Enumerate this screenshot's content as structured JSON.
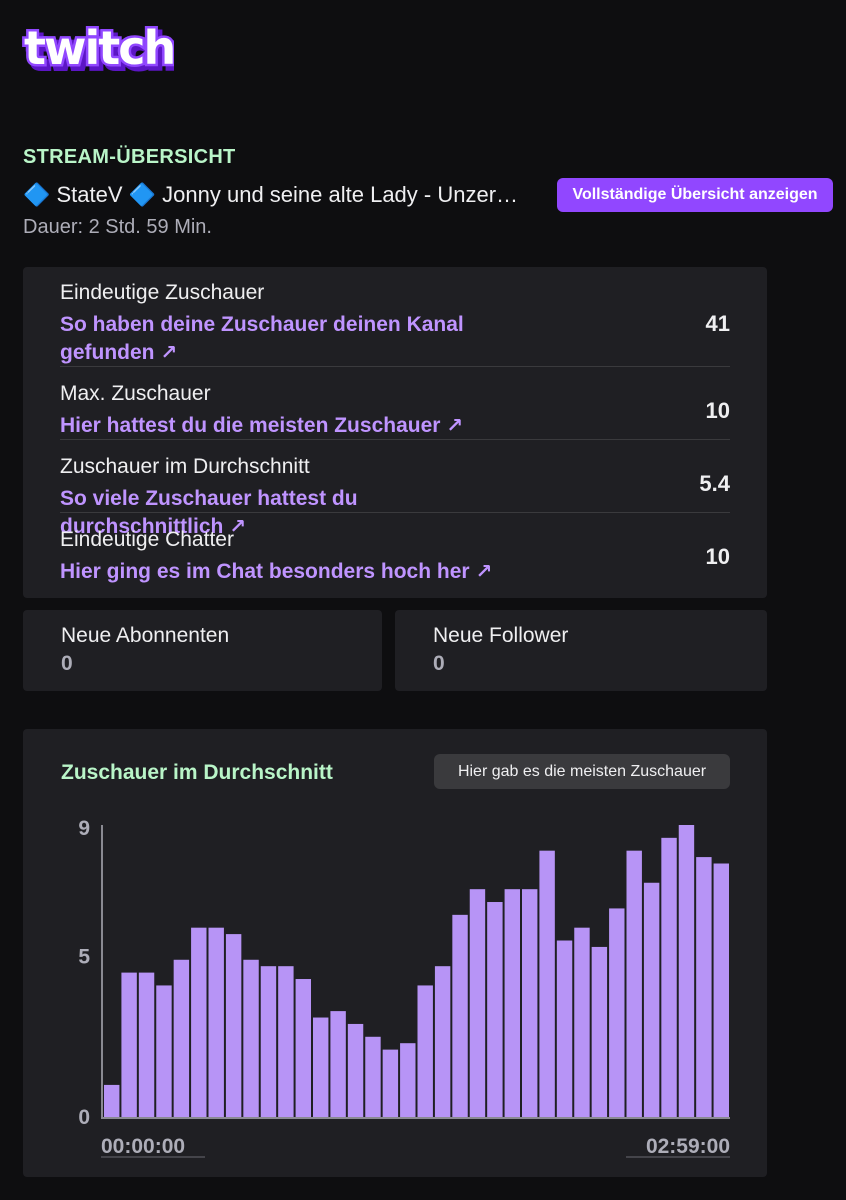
{
  "brand": {
    "logo_text": "twitch",
    "color": "#9147ff"
  },
  "overview": {
    "section_label": "STREAM-ÜBERSICHT",
    "title": "🔷 StateV 🔷 Jonny und seine alte Lady - Unzer…",
    "full_overview_button": "Vollständige Übersicht anzeigen",
    "duration": "Dauer: 2 Std. 59 Min."
  },
  "stats": [
    {
      "name": "Eindeutige Zuschauer",
      "link": "So haben deine Zuschauer deinen Kanal gefunden",
      "value": "41"
    },
    {
      "name": "Max. Zuschauer",
      "link": "Hier hattest du die meisten Zuschauer",
      "value": "10"
    },
    {
      "name": "Zuschauer im Durchschnitt",
      "link": "So viele Zuschauer hattest du durchschnittlich",
      "value": "5.4"
    },
    {
      "name": "Eindeutige Chatter",
      "link": "Hier ging es im Chat besonders hoch her",
      "value": "10"
    }
  ],
  "link_arrow": "↗",
  "subscribers": {
    "label": "Neue Abonnenten",
    "value": "0"
  },
  "followers": {
    "label": "Neue Follower",
    "value": "0"
  },
  "chart_section": {
    "title": "Zuschauer im Durchschnitt",
    "peak_button": "Hier gab es die meisten Zuschauer"
  },
  "chart_data": {
    "type": "bar",
    "title": "Zuschauer im Durchschnitt",
    "bar_color": "#b794f6",
    "x_tick_labels": [
      "00:00:00",
      "02:59:00"
    ],
    "y_tick_labels": [
      "0",
      "5",
      "9"
    ],
    "ylim": [
      0,
      9.1
    ],
    "values": [
      1.0,
      4.5,
      4.5,
      4.1,
      4.9,
      5.9,
      5.9,
      5.7,
      4.9,
      4.7,
      4.7,
      4.3,
      3.1,
      3.3,
      2.9,
      2.5,
      2.1,
      2.3,
      4.1,
      4.7,
      6.3,
      7.1,
      6.7,
      7.1,
      7.1,
      8.3,
      5.5,
      5.9,
      5.3,
      6.5,
      8.3,
      7.3,
      8.7,
      9.1,
      8.1,
      7.9
    ]
  }
}
